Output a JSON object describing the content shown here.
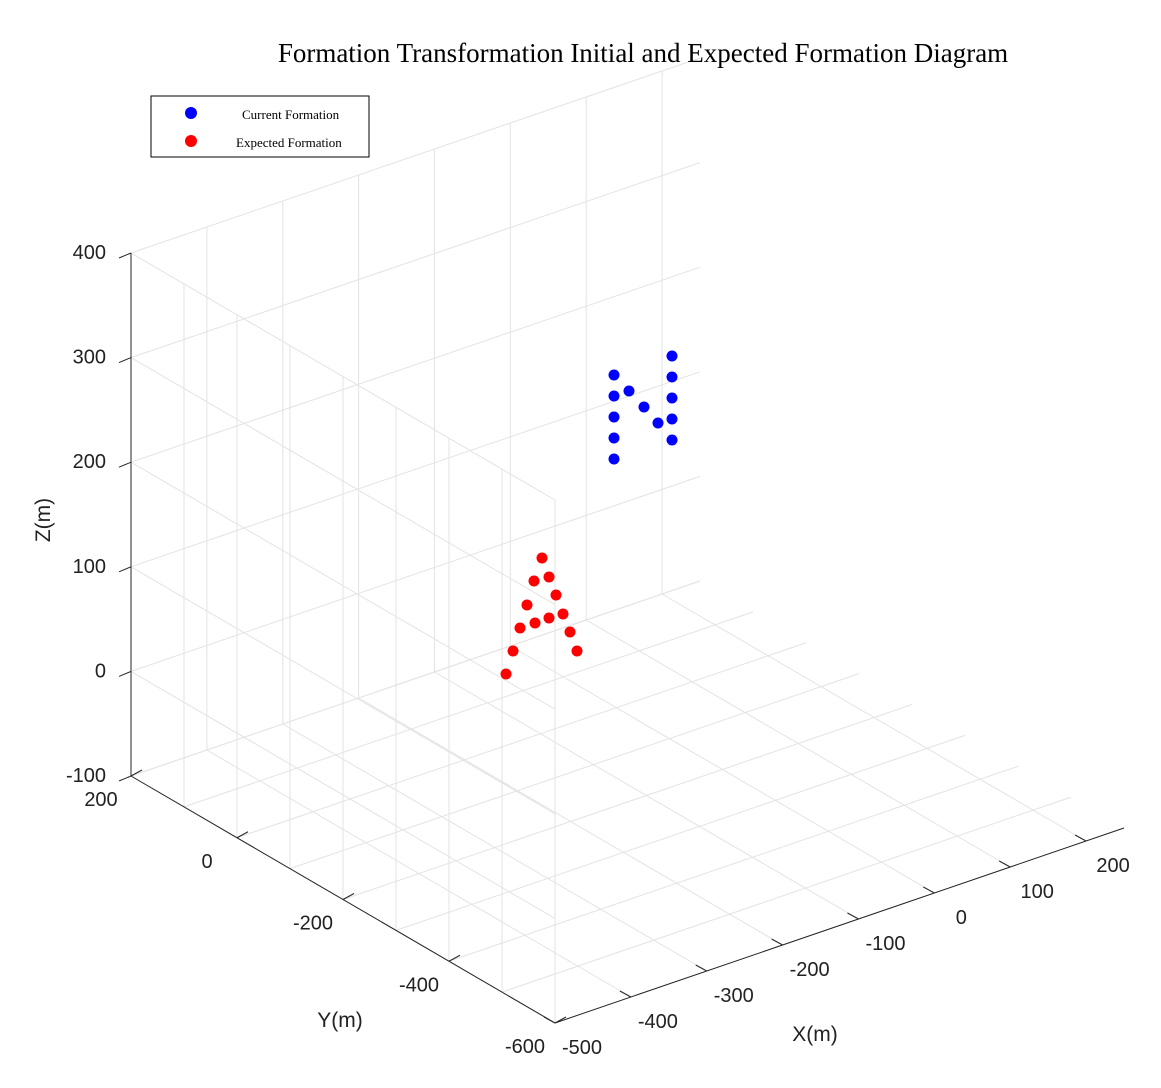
{
  "chart_data": {
    "type": "scatter",
    "title": "Formation Transformation Initial and Expected Formation Diagram",
    "xlabel": "X(m)",
    "ylabel": "Y(m)",
    "zlabel": "Z(m)",
    "xlim": [
      -500,
      250
    ],
    "ylim": [
      -600,
      200
    ],
    "zlim": [
      -100,
      400
    ],
    "x_ticks": [
      "-500",
      "-400",
      "-300",
      "-200",
      "-100",
      "0",
      "100",
      "200"
    ],
    "y_ticks": [
      "-600",
      "-400",
      "-200",
      "0",
      "200"
    ],
    "z_ticks": [
      "-100",
      "0",
      "100",
      "200",
      "300",
      "400"
    ],
    "grid": true,
    "legend_position": "top-left",
    "series": [
      {
        "name": "Current Formation",
        "color": "#0000ff",
        "points": [
          [
            0,
            0,
            200
          ],
          [
            0,
            0,
            220
          ],
          [
            0,
            0,
            240
          ],
          [
            0,
            0,
            260
          ],
          [
            0,
            0,
            280
          ],
          [
            0,
            0,
            300
          ],
          [
            0,
            0,
            320
          ],
          [
            0,
            0,
            340
          ],
          [
            0,
            0,
            360
          ],
          [
            0,
            0,
            380
          ],
          [
            0,
            0,
            400
          ],
          [
            0,
            0,
            420
          ],
          [
            0,
            0,
            440
          ]
        ]
      },
      {
        "name": "Expected Formation",
        "color": "#ff0000",
        "points": [
          [
            0,
            0,
            10
          ],
          [
            0,
            0,
            30
          ],
          [
            0,
            0,
            50
          ],
          [
            0,
            0,
            70
          ],
          [
            0,
            0,
            90
          ],
          [
            0,
            0,
            110
          ],
          [
            0,
            0,
            60
          ],
          [
            0,
            0,
            60
          ],
          [
            0,
            0,
            90
          ],
          [
            0,
            0,
            70
          ],
          [
            0,
            0,
            50
          ],
          [
            0,
            0,
            30
          ],
          [
            0,
            0,
            10
          ]
        ]
      }
    ]
  }
}
